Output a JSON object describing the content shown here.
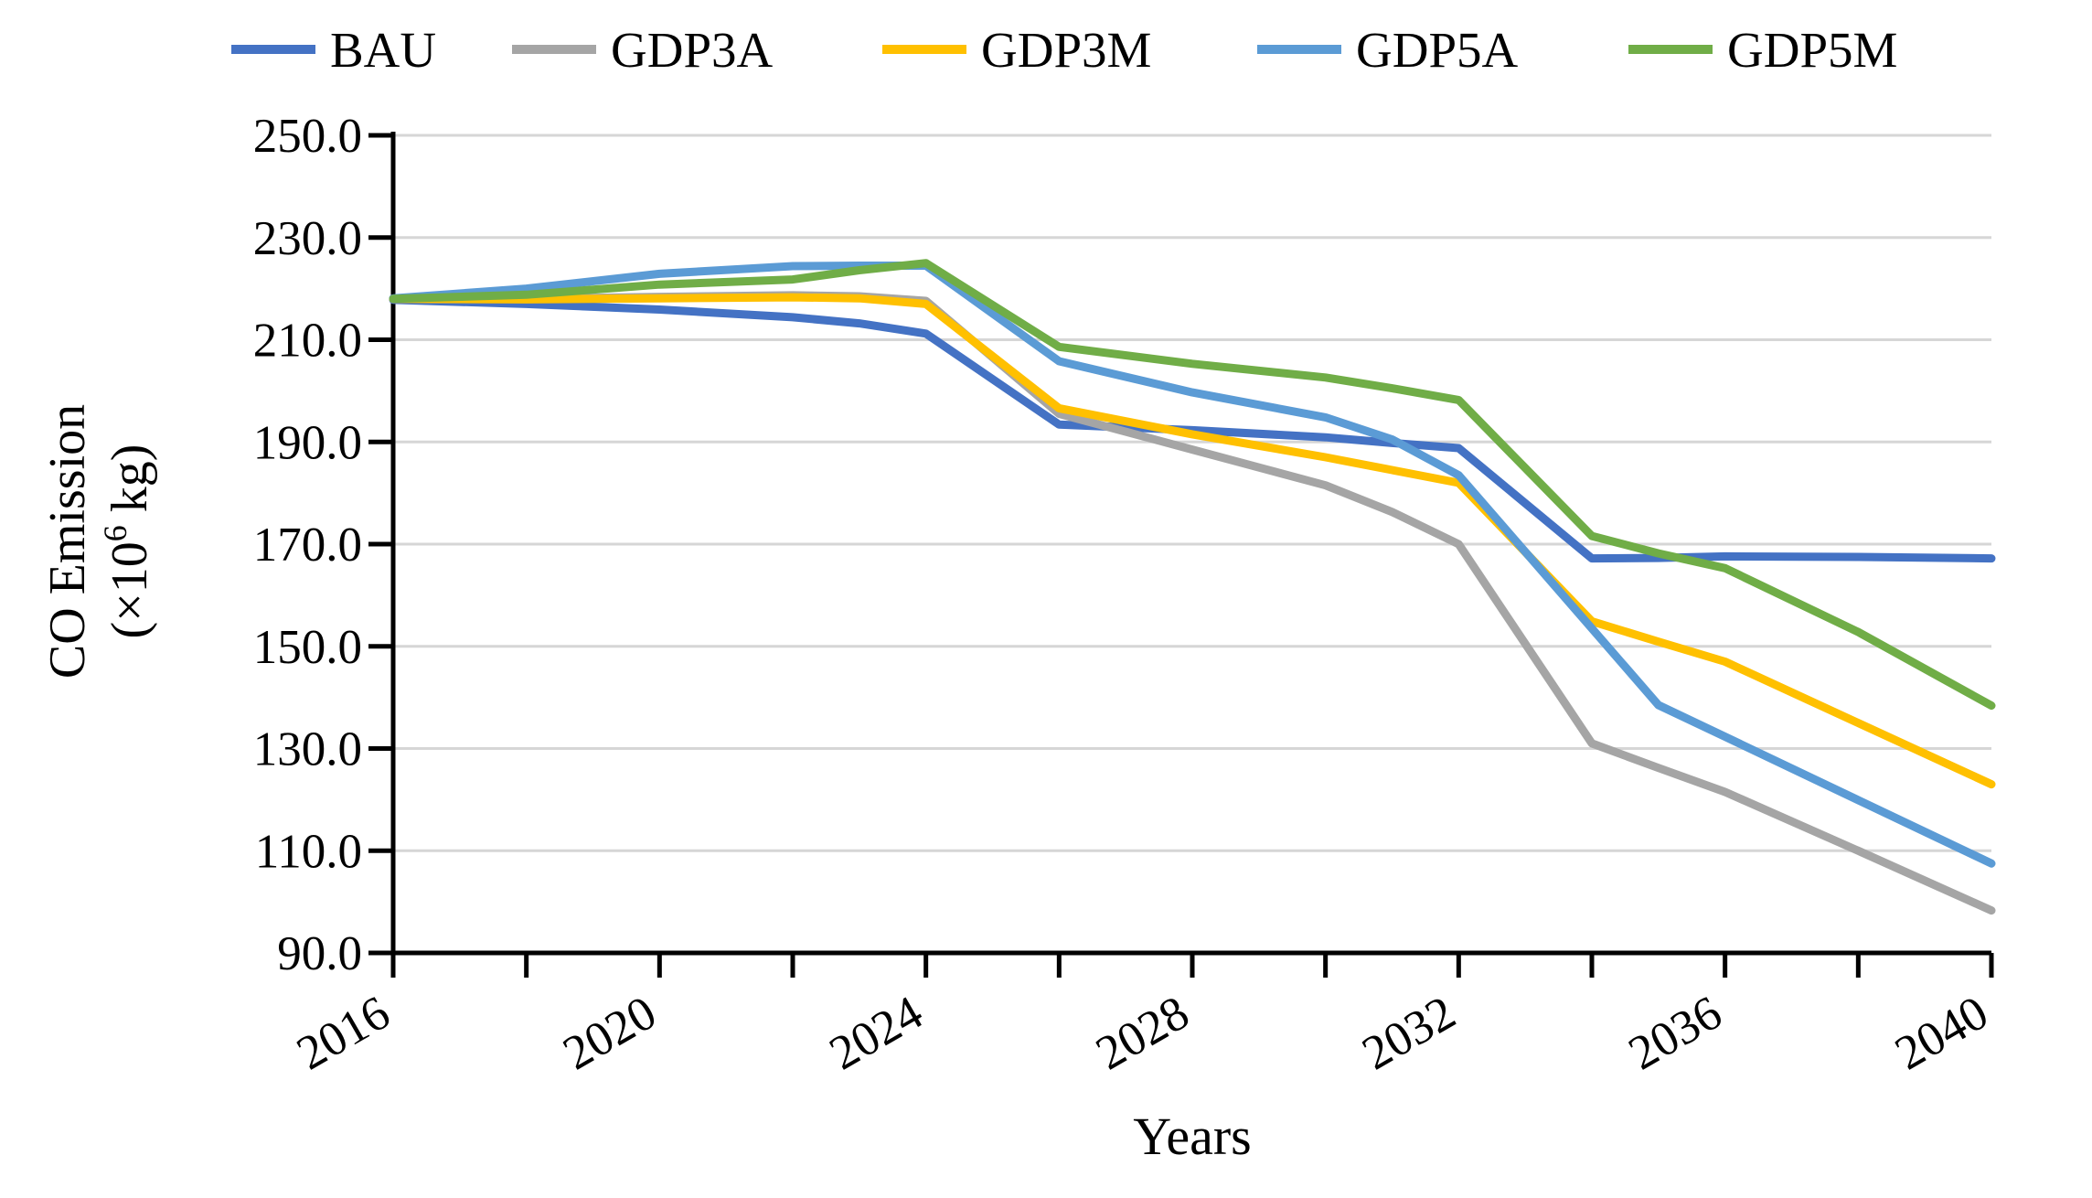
{
  "chart_data": {
    "type": "line",
    "title": "",
    "legend_position": "top",
    "grid": "on",
    "background_color": "#ffffff",
    "gridline_color": "#d6d6d6",
    "axis_color": "#000000",
    "x_axis": {
      "label": "Years",
      "range": [
        2016,
        2040
      ],
      "minor_tick_step_years": 2,
      "label_years": [
        2016,
        2020,
        2024,
        2028,
        2032,
        2036,
        2040
      ],
      "tick_years": [
        2016,
        2018,
        2020,
        2022,
        2024,
        2026,
        2028,
        2030,
        2032,
        2034,
        2036,
        2038,
        2040
      ]
    },
    "y_axis": {
      "title_line1": "CO Emission",
      "title_line2_prefix": "(×10",
      "title_superscript": "6",
      "title_line2_suffix": " kg)",
      "range": [
        90,
        250
      ],
      "tick_step": 20,
      "tick_labels": [
        "250.0",
        "230.0",
        "210.0",
        "190.0",
        "170.0",
        "150.0",
        "130.0",
        "110.0",
        "90.0"
      ]
    },
    "years": [
      2016,
      2018,
      2020,
      2022,
      2023,
      2024,
      2026,
      2028,
      2030,
      2031,
      2032,
      2034,
      2035,
      2036,
      2038,
      2040
    ],
    "series": [
      {
        "name": "BAU",
        "color": "#4472C4",
        "values": [
          217.8,
          217.0,
          215.9,
          214.4,
          213.2,
          211.2,
          193.4,
          192.3,
          190.9,
          189.8,
          188.8,
          167.2,
          167.3,
          167.6,
          167.5,
          167.2
        ]
      },
      {
        "name": "GDP3A",
        "color": "#A5A5A5",
        "values": [
          218.0,
          218.0,
          218.4,
          218.7,
          218.5,
          217.6,
          195.5,
          188.5,
          181.5,
          176.3,
          170.0,
          131.0,
          126.2,
          121.5,
          110.0,
          98.3
        ]
      },
      {
        "name": "GDP3M",
        "color": "#FFC000",
        "values": [
          218.0,
          217.9,
          218.1,
          218.3,
          218.1,
          217.0,
          196.6,
          191.5,
          187.0,
          184.5,
          182.0,
          154.9,
          150.9,
          147.0,
          135.0,
          123.0
        ]
      },
      {
        "name": "GDP5A",
        "color": "#5B9BD5",
        "values": [
          218.1,
          220.0,
          222.9,
          224.4,
          224.5,
          224.5,
          205.8,
          199.7,
          194.8,
          190.5,
          183.5,
          153.5,
          138.5,
          132.3,
          119.9,
          107.5
        ]
      },
      {
        "name": "GDP5M",
        "color": "#70AD47",
        "values": [
          218.0,
          218.8,
          220.8,
          221.8,
          223.6,
          225.0,
          208.6,
          205.3,
          202.6,
          200.5,
          198.2,
          171.6,
          168.2,
          165.3,
          152.8,
          138.4
        ]
      }
    ]
  }
}
